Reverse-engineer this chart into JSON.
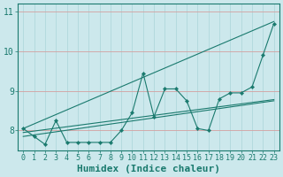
{
  "title": "",
  "xlabel": "Humidex (Indice chaleur)",
  "ylabel": "",
  "bg_color": "#cce8ec",
  "line_color": "#1a7a6e",
  "grid_color": "#aad4d8",
  "red_grid_color": "#d4a0a0",
  "xlim": [
    -0.5,
    23.5
  ],
  "ylim": [
    7.5,
    11.2
  ],
  "yticks": [
    8,
    9,
    10,
    11
  ],
  "xticks": [
    0,
    1,
    2,
    3,
    4,
    5,
    6,
    7,
    8,
    9,
    10,
    11,
    12,
    13,
    14,
    15,
    16,
    17,
    18,
    19,
    20,
    21,
    22,
    23
  ],
  "data_x": [
    0,
    1,
    2,
    3,
    4,
    5,
    6,
    7,
    8,
    9,
    10,
    11,
    12,
    13,
    14,
    15,
    16,
    17,
    18,
    19,
    20,
    21,
    22,
    23
  ],
  "data_y": [
    8.05,
    7.85,
    7.65,
    8.25,
    7.7,
    7.7,
    7.7,
    7.7,
    7.7,
    8.0,
    8.45,
    9.45,
    8.35,
    9.05,
    9.05,
    8.75,
    8.05,
    8.0,
    8.8,
    8.95,
    8.95,
    9.1,
    9.9,
    10.7
  ],
  "upper_line_x": [
    0,
    23
  ],
  "upper_line_y": [
    8.05,
    10.75
  ],
  "lower_line_x": [
    0,
    23
  ],
  "lower_line_y": [
    7.85,
    8.75
  ],
  "mid_line_x": [
    0,
    23
  ],
  "mid_line_y": [
    7.95,
    8.78
  ],
  "fontsize_xlabel": 8,
  "fontsize_ticks": 7,
  "tick_color": "#1a7a6e"
}
